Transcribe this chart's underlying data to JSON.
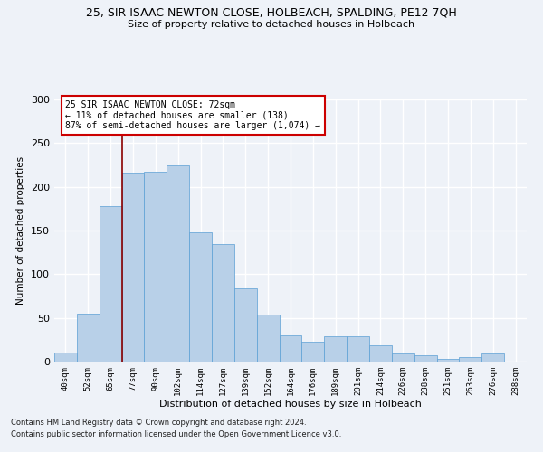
{
  "title1": "25, SIR ISAAC NEWTON CLOSE, HOLBEACH, SPALDING, PE12 7QH",
  "title2": "Size of property relative to detached houses in Holbeach",
  "xlabel": "Distribution of detached houses by size in Holbeach",
  "ylabel": "Number of detached properties",
  "categories": [
    "40sqm",
    "52sqm",
    "65sqm",
    "77sqm",
    "90sqm",
    "102sqm",
    "114sqm",
    "127sqm",
    "139sqm",
    "152sqm",
    "164sqm",
    "176sqm",
    "189sqm",
    "201sqm",
    "214sqm",
    "226sqm",
    "238sqm",
    "251sqm",
    "263sqm",
    "276sqm",
    "288sqm"
  ],
  "values": [
    10,
    55,
    178,
    216,
    217,
    225,
    148,
    135,
    84,
    54,
    30,
    23,
    29,
    29,
    19,
    9,
    7,
    3,
    5,
    9,
    0
  ],
  "bar_color": "#b8d0e8",
  "bar_edge_color": "#5a9fd4",
  "vline_color": "#8b0000",
  "annotation_lines": [
    "25 SIR ISAAC NEWTON CLOSE: 72sqm",
    "← 11% of detached houses are smaller (138)",
    "87% of semi-detached houses are larger (1,074) →"
  ],
  "annotation_box_color": "#ffffff",
  "annotation_box_edge": "#cc0000",
  "footnote1": "Contains HM Land Registry data © Crown copyright and database right 2024.",
  "footnote2": "Contains public sector information licensed under the Open Government Licence v3.0.",
  "ylim": [
    0,
    300
  ],
  "yticks": [
    0,
    50,
    100,
    150,
    200,
    250,
    300
  ],
  "bg_color": "#eef2f8",
  "grid_color": "#ffffff"
}
